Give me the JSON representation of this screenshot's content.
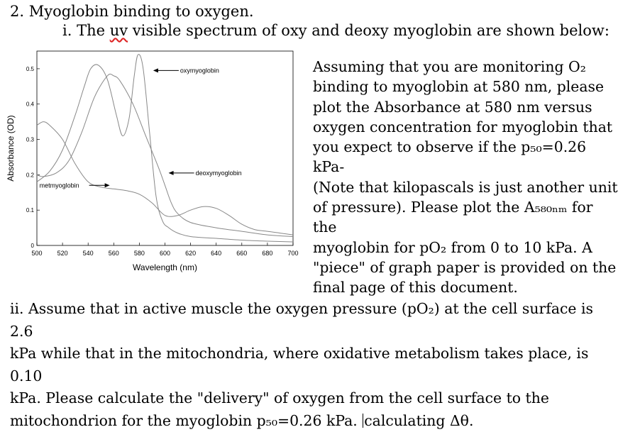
{
  "doc": {
    "title": "2. Myoglobin binding to oxygen.",
    "subtitle_prefix": "i. The ",
    "subtitle_squiggle": "uv",
    "subtitle_rest": " visible spectrum of oxy and deoxy myoglobin are shown below:",
    "right_paragraph": [
      "Assuming that you are monitoring O₂",
      "binding to myoglobin at 580 nm, please",
      "plot the Absorbance at 580 nm versus",
      "oxygen concentration for myoglobin that",
      "you expect to observe if the p₅₀=0.26 kPa-",
      "(Note that kilopascals is just another unit",
      "of pressure). Please plot the A₅₈₀ₙₘ for the",
      "myoglobin for pO₂ from 0 to 10 kPa. A",
      "\"piece\" of graph paper is provided on the",
      "final page of this document."
    ],
    "bottom_paragraph": [
      "ii. Assume that in active muscle the oxygen pressure (pO₂) at the cell surface is 2.6",
      "kPa while that in the mitochondria, where oxidative metabolism takes place, is 0.10",
      "kPa. Please calculate the \"delivery\" of oxygen from the cell surface to the",
      "mitochondrion for the myoglobin p₅₀=0.26 kPa.",
      "calculating Δθ."
    ]
  },
  "chart_data": {
    "type": "line",
    "xlabel": "Wavelength (nm)",
    "ylabel": "Absorbance (OD)",
    "xlim": [
      500,
      700
    ],
    "ylim": [
      0,
      0.55
    ],
    "xticks": [
      500,
      520,
      540,
      560,
      580,
      600,
      620,
      640,
      660,
      680,
      700
    ],
    "yticks": [
      0,
      0.1,
      0.2,
      0.3,
      0.4,
      0.5
    ],
    "ytick_labels": [
      "0",
      "0.1",
      "0.2",
      "0.3",
      "0.4",
      "0.5"
    ],
    "line_color": "#888888",
    "series": [
      {
        "name": "oxymyoglobin",
        "x": [
          500,
          510,
          520,
          530,
          537,
          542,
          548,
          555,
          562,
          567,
          572,
          576,
          579,
          583,
          588,
          593,
          598,
          603,
          610,
          620,
          640,
          660,
          680,
          700
        ],
        "y": [
          0.18,
          0.21,
          0.27,
          0.37,
          0.45,
          0.5,
          0.51,
          0.47,
          0.37,
          0.31,
          0.36,
          0.48,
          0.54,
          0.5,
          0.32,
          0.14,
          0.07,
          0.05,
          0.035,
          0.025,
          0.02,
          0.015,
          0.012,
          0.01
        ]
      },
      {
        "name": "deoxymyoglobin",
        "x": [
          500,
          505,
          515,
          525,
          535,
          545,
          555,
          560,
          565,
          575,
          585,
          595,
          600,
          605,
          610,
          620,
          640,
          660,
          680,
          700
        ],
        "y": [
          0.2,
          0.195,
          0.205,
          0.24,
          0.32,
          0.42,
          0.48,
          0.48,
          0.465,
          0.4,
          0.31,
          0.22,
          0.17,
          0.12,
          0.09,
          0.065,
          0.05,
          0.04,
          0.03,
          0.025
        ]
      },
      {
        "name": "metmyoglobin",
        "x": [
          500,
          505,
          510,
          520,
          530,
          540,
          550,
          560,
          570,
          580,
          590,
          600,
          610,
          620,
          630,
          640,
          650,
          660,
          670,
          680,
          690,
          700
        ],
        "y": [
          0.34,
          0.35,
          0.34,
          0.3,
          0.23,
          0.18,
          0.165,
          0.16,
          0.155,
          0.145,
          0.12,
          0.085,
          0.085,
          0.1,
          0.11,
          0.105,
          0.085,
          0.06,
          0.045,
          0.04,
          0.035,
          0.03
        ]
      }
    ],
    "annotations": [
      {
        "text": "oxymyoglobin",
        "x": 603,
        "y": 0.495
      },
      {
        "text": "deoxymyoglobin",
        "x": 615,
        "y": 0.205
      },
      {
        "text": "metmyoglobin",
        "x": 502,
        "y": 0.17
      }
    ]
  }
}
